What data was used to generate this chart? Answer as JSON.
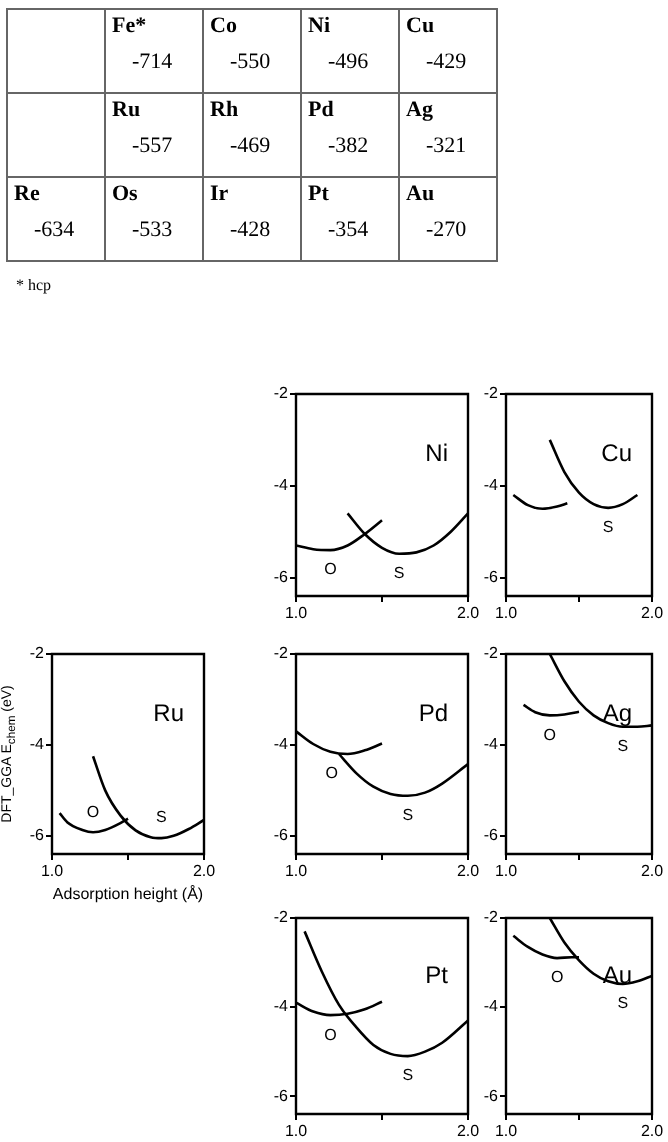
{
  "chart_data": [
    {
      "type": "other",
      "categories": [
        null,
        "Fe*",
        "Co",
        "Ni",
        "Cu",
        null,
        "Ru",
        "Rh",
        "Pd",
        "Ag",
        "Re",
        "Os",
        "Ir",
        "Pt",
        "Au"
      ],
      "values": [
        null,
        -714,
        -550,
        -496,
        -429,
        null,
        -557,
        -469,
        -382,
        -321,
        -634,
        -533,
        -428,
        -354,
        -270
      ],
      "data_labels": true,
      "annotations": [
        "* hcp"
      ]
    },
    {
      "type": "line",
      "title": "Ni",
      "xlim": [
        1,
        2
      ],
      "ylim": [
        -6.4,
        -2
      ],
      "xticks": [
        {
          "value": 1,
          "label": "1.0"
        },
        {
          "value": 1.5,
          "label": null
        },
        {
          "value": 2,
          "label": "2.0"
        }
      ],
      "yticks": [
        -2,
        -4,
        -6
      ],
      "series": [
        {
          "name": "O",
          "color": "#000000",
          "x": [
            1.0,
            1.1,
            1.2,
            1.3,
            1.4,
            1.5
          ],
          "values": [
            -5.3,
            -5.38,
            -5.4,
            -5.3,
            -5.05,
            -4.75
          ]
        },
        {
          "name": "S",
          "color": "#000000",
          "x": [
            1.3,
            1.4,
            1.5,
            1.6,
            1.7,
            1.8,
            1.9,
            2.0
          ],
          "values": [
            -4.6,
            -5.05,
            -5.35,
            -5.48,
            -5.45,
            -5.3,
            -5.0,
            -4.6
          ]
        }
      ]
    },
    {
      "type": "line",
      "title": "Cu",
      "xlim": [
        1,
        2
      ],
      "ylim": [
        -6.4,
        -2
      ],
      "xticks": [
        {
          "value": 1,
          "label": "1.0"
        },
        {
          "value": 1.5,
          "label": null
        },
        {
          "value": 2,
          "label": "2.0"
        }
      ],
      "yticks": [
        -2,
        -4,
        -6
      ],
      "series": [
        {
          "color": "#000000",
          "x": [
            1.05,
            1.15,
            1.25,
            1.35,
            1.42
          ],
          "values": [
            -4.2,
            -4.42,
            -4.5,
            -4.45,
            -4.38
          ]
        },
        {
          "name": "S",
          "color": "#000000",
          "x": [
            1.3,
            1.4,
            1.5,
            1.6,
            1.7,
            1.8,
            1.9
          ],
          "values": [
            -3.0,
            -3.7,
            -4.15,
            -4.4,
            -4.48,
            -4.4,
            -4.2
          ]
        }
      ]
    },
    {
      "type": "line",
      "title": "Ru",
      "xlabel": "Adsorption height (Å)",
      "ylabel": "DFT_GGA E$_{chem}$ (eV)",
      "xlim": [
        1,
        2
      ],
      "ylim": [
        -6.4,
        -2
      ],
      "xticks": [
        {
          "value": 1,
          "label": "1.0"
        },
        {
          "value": 1.5,
          "label": null
        },
        {
          "value": 2,
          "label": "2.0"
        }
      ],
      "yticks": [
        -2,
        -4,
        -6
      ],
      "series": [
        {
          "name": "O",
          "color": "#000000",
          "x": [
            1.05,
            1.1,
            1.2,
            1.27,
            1.35,
            1.45,
            1.5
          ],
          "values": [
            -5.5,
            -5.7,
            -5.87,
            -5.92,
            -5.87,
            -5.72,
            -5.62
          ]
        },
        {
          "name": "S",
          "color": "#000000",
          "x": [
            1.27,
            1.35,
            1.45,
            1.55,
            1.65,
            1.72,
            1.8,
            1.9,
            2.0
          ],
          "values": [
            -4.25,
            -5.0,
            -5.55,
            -5.88,
            -6.03,
            -6.05,
            -6.0,
            -5.85,
            -5.65
          ]
        }
      ]
    },
    {
      "type": "line",
      "title": "Pd",
      "xlim": [
        1,
        2
      ],
      "ylim": [
        -6.4,
        -2
      ],
      "xticks": [
        {
          "value": 1,
          "label": "1.0"
        },
        {
          "value": 1.5,
          "label": null
        },
        {
          "value": 2,
          "label": "2.0"
        }
      ],
      "yticks": [
        -2,
        -4,
        -6
      ],
      "series": [
        {
          "name": "O",
          "color": "#000000",
          "x": [
            1.0,
            1.1,
            1.2,
            1.3,
            1.4,
            1.5
          ],
          "values": [
            -3.7,
            -3.98,
            -4.15,
            -4.2,
            -4.12,
            -3.97
          ]
        },
        {
          "name": "S",
          "color": "#000000",
          "x": [
            1.25,
            1.35,
            1.45,
            1.55,
            1.65,
            1.75,
            1.85,
            2.0
          ],
          "values": [
            -4.2,
            -4.62,
            -4.92,
            -5.08,
            -5.12,
            -5.05,
            -4.85,
            -4.42
          ]
        }
      ]
    },
    {
      "type": "line",
      "title": "Ag",
      "xlim": [
        1,
        2
      ],
      "ylim": [
        -6.4,
        -2
      ],
      "xticks": [
        {
          "value": 1,
          "label": "1.0"
        },
        {
          "value": 1.5,
          "label": null
        },
        {
          "value": 2,
          "label": "2.0"
        }
      ],
      "yticks": [
        -2,
        -4,
        -6
      ],
      "series": [
        {
          "name": "O",
          "color": "#000000",
          "x": [
            1.12,
            1.2,
            1.3,
            1.4,
            1.5
          ],
          "values": [
            -3.12,
            -3.28,
            -3.35,
            -3.33,
            -3.27
          ]
        },
        {
          "name": "S",
          "color": "#000000",
          "x": [
            1.3,
            1.4,
            1.5,
            1.6,
            1.7,
            1.8,
            1.9,
            2.0
          ],
          "values": [
            -2.0,
            -2.6,
            -3.05,
            -3.35,
            -3.52,
            -3.6,
            -3.6,
            -3.57
          ]
        }
      ]
    },
    {
      "type": "line",
      "title": "Pt",
      "xlim": [
        1,
        2
      ],
      "ylim": [
        -6.4,
        -2
      ],
      "xticks": [
        {
          "value": 1,
          "label": "1.0"
        },
        {
          "value": 1.5,
          "label": null
        },
        {
          "value": 2,
          "label": "2.0"
        }
      ],
      "yticks": [
        -2,
        -4,
        -6
      ],
      "series": [
        {
          "name": "O",
          "color": "#000000",
          "x": [
            1.0,
            1.1,
            1.2,
            1.3,
            1.4,
            1.5
          ],
          "values": [
            -3.9,
            -4.1,
            -4.18,
            -4.15,
            -4.05,
            -3.88
          ]
        },
        {
          "name": "S",
          "color": "#000000",
          "x": [
            1.05,
            1.15,
            1.25,
            1.35,
            1.45,
            1.55,
            1.65,
            1.75,
            1.85,
            2.0
          ],
          "values": [
            -2.3,
            -3.2,
            -3.95,
            -4.45,
            -4.85,
            -5.05,
            -5.1,
            -5.0,
            -4.8,
            -4.3
          ]
        }
      ]
    },
    {
      "type": "line",
      "title": "Au",
      "xlim": [
        1,
        2
      ],
      "ylim": [
        -6.4,
        -2
      ],
      "xticks": [
        {
          "value": 1,
          "label": "1.0"
        },
        {
          "value": 1.5,
          "label": null
        },
        {
          "value": 2,
          "label": "2.0"
        }
      ],
      "yticks": [
        -2,
        -4,
        -6
      ],
      "series": [
        {
          "name": "O",
          "color": "#000000",
          "x": [
            1.05,
            1.15,
            1.25,
            1.35,
            1.45,
            1.5
          ],
          "values": [
            -2.4,
            -2.65,
            -2.82,
            -2.9,
            -2.88,
            -2.88
          ]
        },
        {
          "name": "S",
          "color": "#000000",
          "x": [
            1.3,
            1.4,
            1.5,
            1.6,
            1.7,
            1.8,
            1.9,
            2.0
          ],
          "values": [
            -2.0,
            -2.55,
            -2.95,
            -3.25,
            -3.42,
            -3.48,
            -3.42,
            -3.3
          ]
        }
      ]
    }
  ]
}
